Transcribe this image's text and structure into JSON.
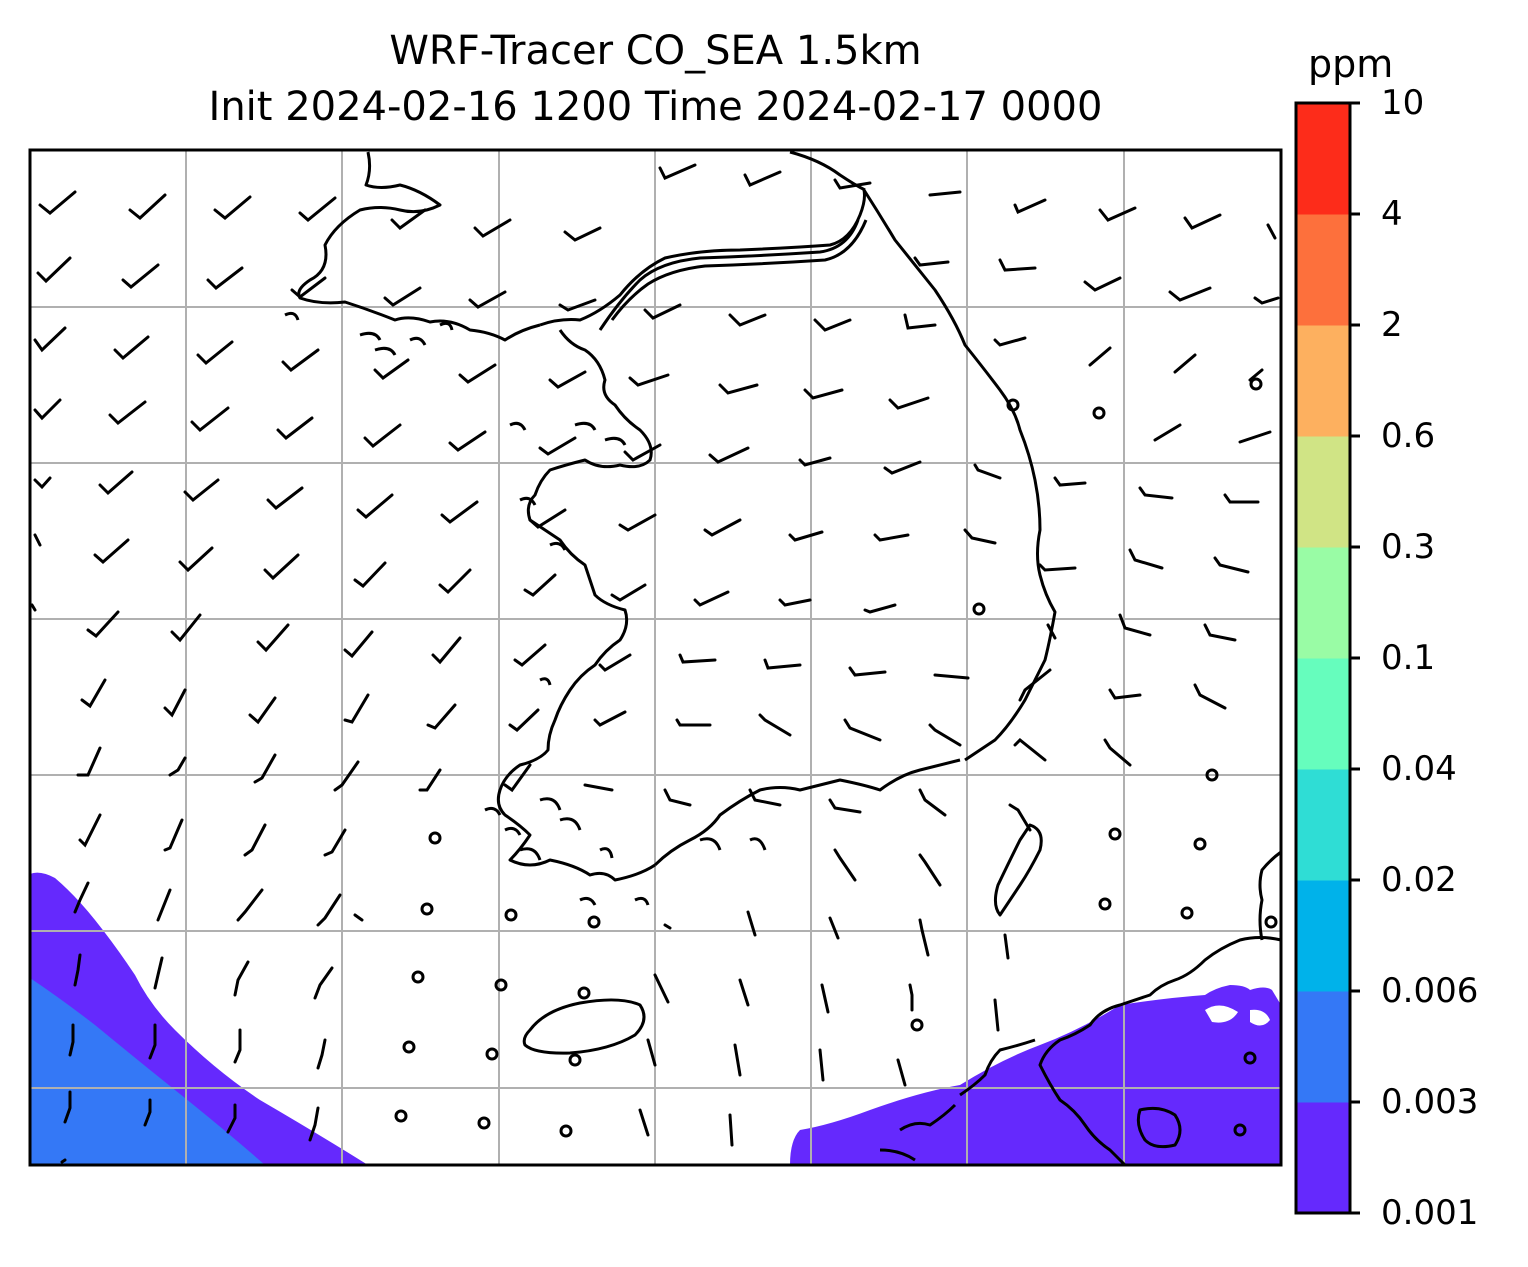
{
  "title": {
    "line1": "WRF-Tracer CO_SEA 1.5km",
    "line2": "Init 2024-02-16 1200 Time 2024-02-17 0000"
  },
  "colorbar": {
    "unit": "ppm",
    "levels": [
      "0.001",
      "0.003",
      "0.006",
      "0.02",
      "0.04",
      "0.1",
      "0.3",
      "0.6",
      "2",
      "4",
      "10"
    ],
    "colors": [
      "#6529fd",
      "#3478f6",
      "#00b2ea",
      "#2fddd5",
      "#66fdbd",
      "#99fca5",
      "#d0e485",
      "#fdb05f",
      "#fd703c",
      "#fd2c1a"
    ]
  },
  "map": {
    "grid_color": "#b0b0b0",
    "coastline_color": "#000000",
    "field": "CO_SEA tracer concentration with wind barbs"
  }
}
